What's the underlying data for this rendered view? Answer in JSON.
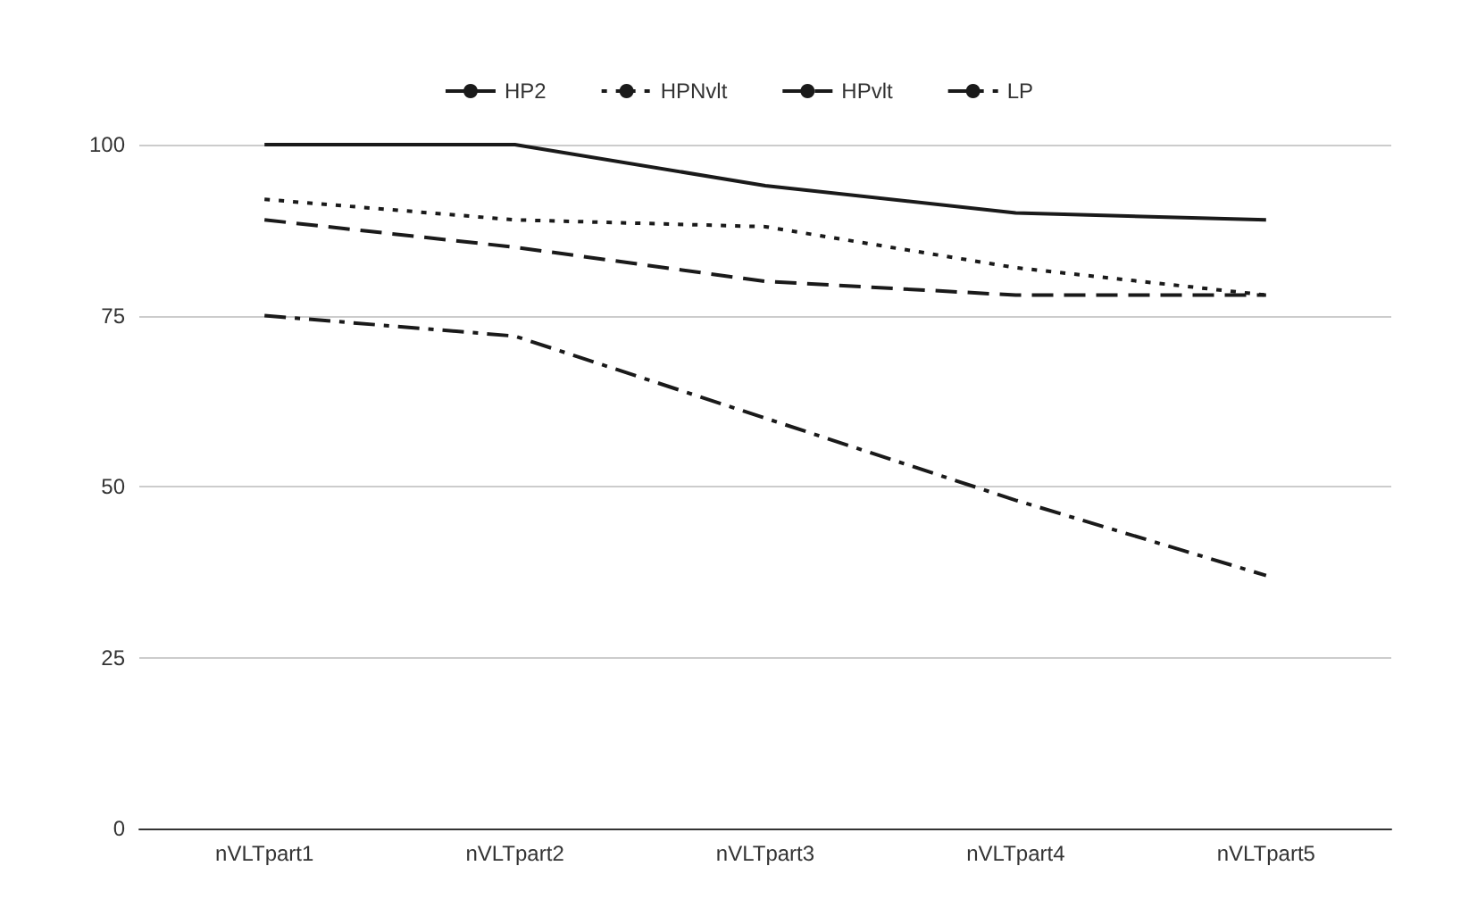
{
  "chart_data": {
    "type": "line",
    "categories": [
      "nVLTpart1",
      "nVLTpart2",
      "nVLTpart3",
      "nVLTpart4",
      "nVLTpart5"
    ],
    "series": [
      {
        "name": "HP2",
        "color": "#1a1a1a",
        "line_style": "solid",
        "values": [
          100,
          100,
          94,
          90,
          89
        ]
      },
      {
        "name": "HPNvlt",
        "color": "#1a1a1a",
        "line_style": "dotted",
        "values": [
          92,
          89,
          88,
          82,
          78
        ]
      },
      {
        "name": "HPvlt",
        "color": "#1a1a1a",
        "line_style": "dashed",
        "values": [
          89,
          85,
          80,
          78,
          78
        ]
      },
      {
        "name": "LP",
        "color": "#1a1a1a",
        "line_style": "dashdot",
        "values": [
          75,
          72,
          60,
          48,
          37
        ]
      }
    ],
    "ylim": [
      0,
      100
    ],
    "yticks": [
      0,
      25,
      50,
      75,
      100
    ],
    "grid": "y",
    "legend": "top",
    "marker": "none"
  }
}
